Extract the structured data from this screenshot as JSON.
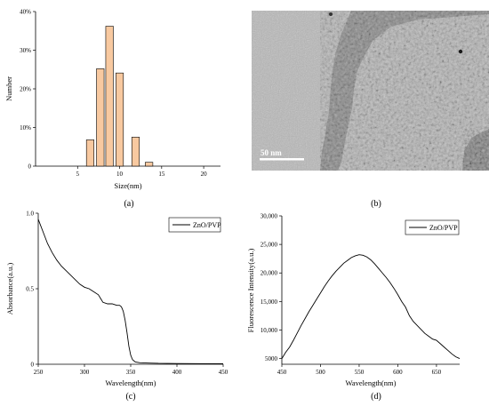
{
  "panels": {
    "a": {
      "label": "(a)"
    },
    "b": {
      "label": "(b)",
      "scale_bar_text": "50 nm"
    },
    "c": {
      "label": "(c)"
    },
    "d": {
      "label": "(d)"
    }
  },
  "chart_data": [
    {
      "id": "a",
      "type": "bar",
      "xlabel": "Size(nm)",
      "ylabel": "Number",
      "xlim": [
        0,
        22
      ],
      "ylim": [
        0,
        40
      ],
      "xticks": [
        5,
        10,
        15,
        20
      ],
      "yticks": [
        0,
        10,
        20,
        30,
        40
      ],
      "ytick_labels": [
        "0",
        "10%",
        "20%",
        "30%",
        "40%"
      ],
      "bar_color": "#f8c9a0",
      "bar_width": 0.9,
      "x": [
        6.5,
        7.7,
        8.8,
        10.0,
        11.9,
        13.5
      ],
      "values": [
        6.8,
        25.2,
        36.2,
        24.1,
        7.5,
        1.0
      ]
    },
    {
      "id": "c",
      "type": "line",
      "xlabel": "Wavelength(nm)",
      "ylabel": "Absorbance(a.u.)",
      "xlim": [
        250,
        450
      ],
      "ylim": [
        0,
        1.0
      ],
      "xticks": [
        250,
        300,
        350,
        400,
        450
      ],
      "yticks": [
        0.0,
        0.5,
        1.0
      ],
      "ytick_labels": [
        "0",
        "0.5",
        "1.0"
      ],
      "legend": [
        "ZnO/PVP"
      ],
      "series": [
        {
          "name": "ZnO/PVP",
          "x": [
            250,
            255,
            260,
            265,
            270,
            275,
            280,
            285,
            290,
            295,
            300,
            305,
            310,
            315,
            318,
            320,
            325,
            330,
            335,
            338,
            340,
            342,
            344,
            346,
            348,
            350,
            352,
            355,
            360,
            370,
            380,
            400,
            420,
            450
          ],
          "y": [
            0.96,
            0.88,
            0.8,
            0.74,
            0.69,
            0.65,
            0.62,
            0.59,
            0.56,
            0.53,
            0.51,
            0.5,
            0.48,
            0.46,
            0.43,
            0.41,
            0.4,
            0.4,
            0.39,
            0.39,
            0.38,
            0.35,
            0.29,
            0.21,
            0.12,
            0.06,
            0.03,
            0.015,
            0.01,
            0.008,
            0.006,
            0.005,
            0.004,
            0.003
          ]
        }
      ]
    },
    {
      "id": "d",
      "type": "line",
      "xlabel": "Wavelength(nm)",
      "ylabel": "Fluorescence Intensity(a.u.)",
      "xlim": [
        450,
        680
      ],
      "ylim": [
        4000,
        30000
      ],
      "xticks": [
        450,
        500,
        550,
        600,
        650
      ],
      "yticks": [
        5000,
        10000,
        15000,
        20000,
        25000,
        30000
      ],
      "ytick_labels": [
        "5000",
        "10,000",
        "15,000",
        "20,000",
        "25,000",
        "30,000"
      ],
      "legend": [
        "ZnO/PVP"
      ],
      "series": [
        {
          "name": "ZnO/PVP",
          "x": [
            450,
            455,
            460,
            465,
            470,
            475,
            480,
            485,
            490,
            495,
            500,
            505,
            510,
            515,
            520,
            525,
            530,
            535,
            540,
            545,
            550,
            555,
            560,
            565,
            570,
            575,
            580,
            585,
            590,
            595,
            600,
            605,
            610,
            615,
            620,
            625,
            630,
            635,
            640,
            645,
            650,
            655,
            660,
            665,
            670,
            675,
            680
          ],
          "y": [
            5000,
            6100,
            7000,
            8200,
            9500,
            10800,
            12000,
            13200,
            14300,
            15400,
            16500,
            17600,
            18600,
            19500,
            20300,
            21000,
            21700,
            22200,
            22700,
            23000,
            23200,
            23100,
            22800,
            22300,
            21600,
            20800,
            20000,
            19200,
            18300,
            17300,
            16200,
            15000,
            14000,
            12500,
            11500,
            10800,
            10100,
            9400,
            8900,
            8400,
            8200,
            7600,
            7000,
            6400,
            5800,
            5300,
            5000
          ]
        }
      ]
    }
  ]
}
